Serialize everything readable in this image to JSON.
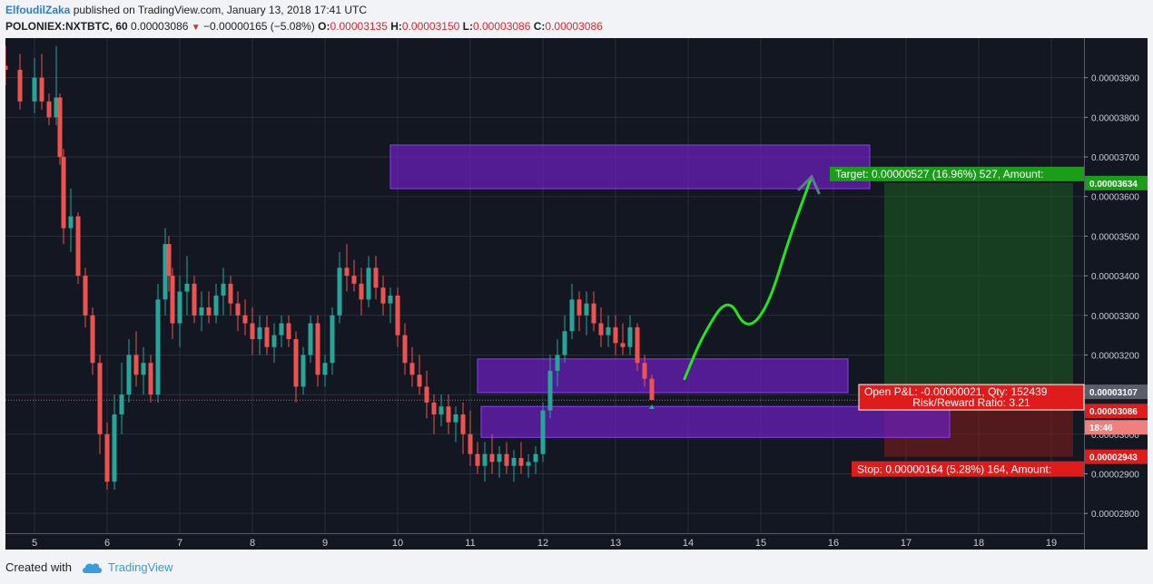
{
  "header": {
    "author": "ElfoudilZaka",
    "published_text": "published on TradingView.com, January 13, 2018 17:41 UTC",
    "symbol": "POLONIEX:NXTBTC, 60",
    "last": "0.00003086",
    "change": "−0.00000165 (−5.08%)",
    "o_label": "O:",
    "o_value": "0.00003135",
    "h_label": "H:",
    "h_value": "0.00003150",
    "l_label": "L:",
    "l_value": "0.00003086",
    "c_label": "C:",
    "c_value": "0.00003086"
  },
  "footer": {
    "created_with": "Created with",
    "brand": "TradingView"
  },
  "colors": {
    "background": "#131722",
    "grid": "#2a2e39",
    "up": "#26a69a",
    "down": "#ef5350",
    "zone": "#6a1fb8",
    "target_zone": "#1b5e20",
    "stop_zone": "#7f1d1d",
    "arrow": "#22e61b",
    "target_label": "#1a9e1a",
    "stop_label": "#e01b1b"
  },
  "chart_data": {
    "type": "candlestick",
    "x_ticks": [
      "5",
      "6",
      "7",
      "8",
      "9",
      "10",
      "11",
      "12",
      "13",
      "14",
      "15",
      "16",
      "17",
      "18",
      "19"
    ],
    "x_range": [
      4.6,
      19.45
    ],
    "y_ticks": [
      "0.00002800",
      "0.00002900",
      "0.00003000",
      "0.00003100",
      "0.00003200",
      "0.00003300",
      "0.00003400",
      "0.00003500",
      "0.00003600",
      "0.00003700",
      "0.00003800",
      "0.00003900"
    ],
    "y_range": [
      2.75e-05,
      4e-05
    ],
    "grid": true,
    "ohlc": [
      [
        4.6,
        3.93,
        3.98,
        3.88,
        3.92
      ],
      [
        4.8,
        3.92,
        3.96,
        3.82,
        3.84
      ],
      [
        5.0,
        3.84,
        3.95,
        3.81,
        3.9
      ],
      [
        5.1,
        3.9,
        3.96,
        3.82,
        3.84
      ],
      [
        5.2,
        3.84,
        3.86,
        3.78,
        3.8
      ],
      [
        5.3,
        3.8,
        3.98,
        3.78,
        3.85
      ],
      [
        5.35,
        3.85,
        3.86,
        3.68,
        3.7
      ],
      [
        5.4,
        3.7,
        3.72,
        3.48,
        3.52
      ],
      [
        5.5,
        3.52,
        3.62,
        3.46,
        3.55
      ],
      [
        5.6,
        3.55,
        3.56,
        3.38,
        3.4
      ],
      [
        5.7,
        3.4,
        3.42,
        3.27,
        3.3
      ],
      [
        5.8,
        3.3,
        3.32,
        3.15,
        3.18
      ],
      [
        5.9,
        3.18,
        3.2,
        2.95,
        3.0
      ],
      [
        6.0,
        3.0,
        3.03,
        2.86,
        2.88
      ],
      [
        6.1,
        2.88,
        3.1,
        2.86,
        3.05
      ],
      [
        6.2,
        3.05,
        3.18,
        3.0,
        3.1
      ],
      [
        6.3,
        3.1,
        3.24,
        3.08,
        3.2
      ],
      [
        6.4,
        3.2,
        3.26,
        3.12,
        3.15
      ],
      [
        6.5,
        3.15,
        3.22,
        3.1,
        3.18
      ],
      [
        6.6,
        3.18,
        3.2,
        3.08,
        3.1
      ],
      [
        6.7,
        3.1,
        3.38,
        3.08,
        3.34
      ],
      [
        6.8,
        3.34,
        3.52,
        3.3,
        3.48
      ],
      [
        6.85,
        3.48,
        3.5,
        3.36,
        3.4
      ],
      [
        6.9,
        3.4,
        3.42,
        3.24,
        3.28
      ],
      [
        7.0,
        3.28,
        3.4,
        3.22,
        3.36
      ],
      [
        7.1,
        3.36,
        3.45,
        3.3,
        3.38
      ],
      [
        7.2,
        3.38,
        3.4,
        3.28,
        3.3
      ],
      [
        7.3,
        3.3,
        3.36,
        3.26,
        3.32
      ],
      [
        7.4,
        3.32,
        3.36,
        3.28,
        3.3
      ],
      [
        7.5,
        3.3,
        3.38,
        3.28,
        3.35
      ],
      [
        7.6,
        3.35,
        3.42,
        3.3,
        3.38
      ],
      [
        7.7,
        3.38,
        3.4,
        3.3,
        3.33
      ],
      [
        7.8,
        3.33,
        3.36,
        3.26,
        3.3
      ],
      [
        7.9,
        3.3,
        3.34,
        3.25,
        3.28
      ],
      [
        8.0,
        3.28,
        3.32,
        3.2,
        3.24
      ],
      [
        8.1,
        3.24,
        3.3,
        3.2,
        3.27
      ],
      [
        8.2,
        3.27,
        3.3,
        3.2,
        3.22
      ],
      [
        8.3,
        3.22,
        3.28,
        3.18,
        3.25
      ],
      [
        8.4,
        3.25,
        3.3,
        3.22,
        3.28
      ],
      [
        8.5,
        3.28,
        3.3,
        3.22,
        3.24
      ],
      [
        8.6,
        3.24,
        3.26,
        3.08,
        3.12
      ],
      [
        8.7,
        3.12,
        3.22,
        3.1,
        3.2
      ],
      [
        8.8,
        3.2,
        3.3,
        3.18,
        3.28
      ],
      [
        8.9,
        3.28,
        3.3,
        3.12,
        3.15
      ],
      [
        9.0,
        3.15,
        3.2,
        3.12,
        3.18
      ],
      [
        9.1,
        3.18,
        3.32,
        3.15,
        3.3
      ],
      [
        9.2,
        3.3,
        3.46,
        3.28,
        3.42
      ],
      [
        9.3,
        3.42,
        3.48,
        3.36,
        3.4
      ],
      [
        9.4,
        3.4,
        3.44,
        3.36,
        3.38
      ],
      [
        9.5,
        3.38,
        3.42,
        3.3,
        3.34
      ],
      [
        9.6,
        3.34,
        3.45,
        3.32,
        3.42
      ],
      [
        9.7,
        3.42,
        3.45,
        3.34,
        3.37
      ],
      [
        9.8,
        3.37,
        3.4,
        3.3,
        3.33
      ],
      [
        9.9,
        3.33,
        3.37,
        3.28,
        3.35
      ],
      [
        10.0,
        3.35,
        3.37,
        3.22,
        3.25
      ],
      [
        10.1,
        3.25,
        3.28,
        3.15,
        3.18
      ],
      [
        10.2,
        3.18,
        3.22,
        3.12,
        3.15
      ],
      [
        10.3,
        3.15,
        3.2,
        3.1,
        3.12
      ],
      [
        10.4,
        3.12,
        3.16,
        3.04,
        3.08
      ],
      [
        10.5,
        3.08,
        3.1,
        3.0,
        3.05
      ],
      [
        10.6,
        3.05,
        3.1,
        3.02,
        3.07
      ],
      [
        10.7,
        3.07,
        3.1,
        3.0,
        3.03
      ],
      [
        10.8,
        3.03,
        3.07,
        2.98,
        3.05
      ],
      [
        10.9,
        3.05,
        3.08,
        2.95,
        3.0
      ],
      [
        11.0,
        3.0,
        3.06,
        2.92,
        2.95
      ],
      [
        11.1,
        2.95,
        2.98,
        2.9,
        2.92
      ],
      [
        11.2,
        2.92,
        2.98,
        2.88,
        2.95
      ],
      [
        11.3,
        2.95,
        3.0,
        2.9,
        2.93
      ],
      [
        11.4,
        2.93,
        2.97,
        2.89,
        2.95
      ],
      [
        11.5,
        2.95,
        2.98,
        2.9,
        2.92
      ],
      [
        11.6,
        2.92,
        2.96,
        2.88,
        2.94
      ],
      [
        11.7,
        2.94,
        2.98,
        2.9,
        2.92
      ],
      [
        11.8,
        2.92,
        2.95,
        2.89,
        2.93
      ],
      [
        11.9,
        2.93,
        2.97,
        2.9,
        2.95
      ],
      [
        12.0,
        2.95,
        3.08,
        2.93,
        3.06
      ],
      [
        12.1,
        3.06,
        3.2,
        3.04,
        3.16
      ],
      [
        12.2,
        3.16,
        3.24,
        3.12,
        3.2
      ],
      [
        12.3,
        3.2,
        3.3,
        3.18,
        3.26
      ],
      [
        12.4,
        3.26,
        3.38,
        3.24,
        3.34
      ],
      [
        12.5,
        3.34,
        3.36,
        3.26,
        3.3
      ],
      [
        12.6,
        3.3,
        3.36,
        3.25,
        3.33
      ],
      [
        12.7,
        3.33,
        3.36,
        3.26,
        3.28
      ],
      [
        12.8,
        3.28,
        3.32,
        3.22,
        3.25
      ],
      [
        12.9,
        3.25,
        3.3,
        3.22,
        3.27
      ],
      [
        13.0,
        3.27,
        3.3,
        3.2,
        3.23
      ],
      [
        13.1,
        3.23,
        3.28,
        3.2,
        3.22
      ],
      [
        13.2,
        3.22,
        3.3,
        3.2,
        3.27
      ],
      [
        13.3,
        3.27,
        3.28,
        3.16,
        3.18
      ],
      [
        13.4,
        3.18,
        3.2,
        3.12,
        3.14
      ],
      [
        13.5,
        3.14,
        3.15,
        3.0866,
        3.0866
      ]
    ],
    "last_price": 3.086e-05,
    "last_price_label": "0.00003086",
    "zones": [
      {
        "x0": 9.9,
        "x1": 16.5,
        "y0": 3.62e-05,
        "y1": 3.73e-05
      },
      {
        "x0": 11.1,
        "x1": 16.2,
        "y0": 3.105e-05,
        "y1": 3.19e-05
      },
      {
        "x0": 11.15,
        "x1": 17.6,
        "y0": 2.992e-05,
        "y1": 3.07e-05
      }
    ],
    "position": {
      "x0": 16.7,
      "x1": 19.3,
      "entry": 3.107e-05,
      "target": 3.634e-05,
      "stop": 2.943e-05,
      "target_label": "Target: 0.00000527 (16.96%) 527, Amount:",
      "stop_label": "Stop: 0.00000164 (5.28%) 164, Amount:",
      "open_pnl_label": "Open P&L: -0.00000021, Qty: 152439",
      "rr_label": "Risk/Reward Ratio: 3.21",
      "entry_price_label": "0.00003107",
      "target_price_label": "0.00003634",
      "stop_price_label": "0.00002943"
    },
    "countdown_label": "18:46",
    "projection_path": [
      [
        13.95,
        3.14
      ],
      [
        14.2,
        3.25
      ],
      [
        14.55,
        3.35
      ],
      [
        14.8,
        3.26
      ],
      [
        15.1,
        3.32
      ],
      [
        15.4,
        3.5
      ],
      [
        15.7,
        3.65
      ]
    ]
  }
}
